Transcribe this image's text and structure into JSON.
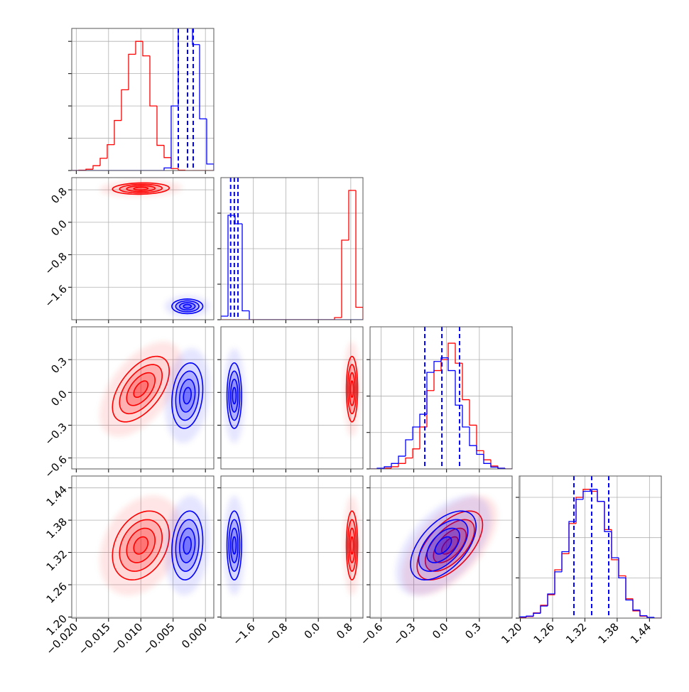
{
  "chart_data": {
    "type": "corner",
    "grid": true,
    "levels": [
      0.5,
      1,
      1.5,
      2
    ],
    "params": [
      {
        "lim": [
          -0.0207,
          0.0013
        ],
        "ticks": [
          {
            "value": -0.02,
            "label": "−0.020"
          },
          {
            "value": -0.015,
            "label": "−0.015"
          },
          {
            "value": -0.01,
            "label": "−0.010"
          },
          {
            "value": -0.005,
            "label": "−0.005"
          },
          {
            "value": 0,
            "label": "0.000"
          }
        ],
        "bins": [
          -0.0207,
          -0.0196,
          -0.0185,
          -0.0174,
          -0.0163,
          -0.0152,
          -0.0141,
          -0.013,
          -0.0119,
          -0.0108,
          -0.0097,
          -0.0086,
          -0.0075,
          -0.0064,
          -0.0053,
          -0.0042,
          -0.0031,
          -0.002,
          -0.0009,
          0.0002,
          0.0013
        ],
        "hist_ylim": [
          0,
          4400
        ],
        "hist_yticks": [
          0,
          1000,
          2000,
          3000,
          4000
        ]
      },
      {
        "lim": [
          -2.4,
          1.1
        ],
        "ticks": [
          {
            "value": -1.6,
            "label": "−1.6"
          },
          {
            "value": -0.8,
            "label": "−0.8"
          },
          {
            "value": 0,
            "label": "0.0"
          },
          0.8
        ],
        "bins": [
          -2.4,
          -2.225,
          -2.05,
          -1.875,
          -1.7,
          -1.525,
          -1.35,
          -1.175,
          -1.0,
          -0.825,
          -0.65,
          -0.475,
          -0.3,
          -0.125,
          0.05,
          0.225,
          0.4,
          0.575,
          0.75,
          0.925,
          1.1
        ],
        "hist_ylim": [
          0,
          4000
        ],
        "hist_yticks": [
          0,
          1000,
          2000,
          3000
        ]
      },
      {
        "lim": [
          -0.7,
          0.6
        ],
        "ticks": [
          {
            "value": -0.6,
            "label": "−0.6"
          },
          {
            "value": -0.3,
            "label": "−0.3"
          },
          {
            "value": 0,
            "label": "0.0"
          },
          0.3
        ],
        "bins": [
          -0.7,
          -0.635,
          -0.57,
          -0.505,
          -0.44,
          -0.375,
          -0.31,
          -0.245,
          -0.18,
          -0.115,
          -0.05,
          0.015,
          0.08,
          0.145,
          0.21,
          0.275,
          0.34,
          0.405,
          0.47,
          0.535,
          0.6
        ],
        "hist_ylim": [
          0,
          3900
        ],
        "hist_yticks": [
          0,
          1000,
          2000,
          3000
        ]
      },
      {
        "lim": [
          1.198,
          1.462
        ],
        "ticks": [
          {
            "value": 1.2,
            "label": "1.20"
          },
          1.26,
          1.32,
          1.38,
          1.44
        ],
        "bins": [
          1.198,
          1.2112,
          1.2244,
          1.2376,
          1.2508,
          1.264,
          1.2772,
          1.2904,
          1.3036,
          1.3168,
          1.33,
          1.3432,
          1.3564,
          1.3696,
          1.3828,
          1.396,
          1.4092,
          1.4224,
          1.4356,
          1.4488,
          1.462
        ],
        "hist_ylim": [
          0,
          3530
        ],
        "hist_yticks": [
          0,
          1000,
          2000,
          3000
        ]
      }
    ],
    "series": [
      {
        "color": "#ff0000",
        "mean": [
          -0.01,
          0.83,
          0.03,
          1.333
        ],
        "sd": [
          0.0022,
          0.07,
          0.15,
          0.032
        ],
        "corr": [
          [],
          [
            0.1
          ],
          [
            0.55,
            0.0
          ],
          [
            0.3,
            0.0,
            0.6
          ]
        ],
        "hist": [
          [
            0,
            10,
            40,
            150,
            380,
            800,
            1550,
            2500,
            3600,
            4000,
            3550,
            2000,
            780,
            400,
            60,
            10,
            0,
            0,
            0,
            0
          ],
          [
            0,
            0,
            0,
            0,
            0,
            0,
            0,
            0,
            0,
            0,
            0,
            0,
            0,
            0,
            0,
            0,
            60,
            2240,
            3640,
            350
          ],
          [
            0,
            0,
            20,
            60,
            150,
            300,
            550,
            1150,
            2150,
            2700,
            3000,
            3450,
            2900,
            1900,
            1200,
            500,
            250,
            80,
            20,
            0
          ],
          [
            20,
            40,
            130,
            320,
            580,
            1200,
            1600,
            2350,
            3000,
            3200,
            3150,
            2900,
            2200,
            1450,
            1050,
            480,
            180,
            50,
            15,
            0
          ]
        ]
      },
      {
        "color": "#0000ff",
        "mean": [
          -0.0028,
          -2.07,
          -0.03,
          1.333
        ],
        "sd": [
          0.0012,
          0.09,
          0.15,
          0.032
        ],
        "corr": [
          [],
          [
            0.0
          ],
          [
            0.2,
            0.0
          ],
          [
            0.15,
            0.0,
            0.55
          ]
        ],
        "hist": [
          [
            0,
            0,
            0,
            0,
            0,
            0,
            0,
            0,
            0,
            0,
            0,
            0,
            0,
            80,
            2000,
            4500,
            4500,
            3900,
            1600,
            200
          ],
          [
            100,
            2940,
            2700,
            250,
            0,
            0,
            0,
            0,
            0,
            0,
            0,
            0,
            0,
            0,
            0,
            0,
            0,
            0,
            0,
            0
          ],
          [
            0,
            20,
            60,
            150,
            350,
            800,
            1150,
            1500,
            2650,
            2950,
            3050,
            2700,
            1750,
            1150,
            640,
            400,
            150,
            50,
            20,
            0
          ],
          [
            30,
            50,
            120,
            300,
            600,
            1150,
            1650,
            2400,
            2950,
            3150,
            3200,
            2900,
            2150,
            1500,
            1000,
            450,
            200,
            60,
            20,
            0
          ]
        ],
        "quantiles": [
          [
            -0.0042,
            -0.00277,
            -0.00189
          ],
          [
            -2.16,
            -2.07,
            -1.98
          ],
          [
            -0.199,
            -0.043,
            0.119
          ],
          [
            1.2996,
            1.3326,
            1.3643
          ]
        ]
      }
    ]
  }
}
